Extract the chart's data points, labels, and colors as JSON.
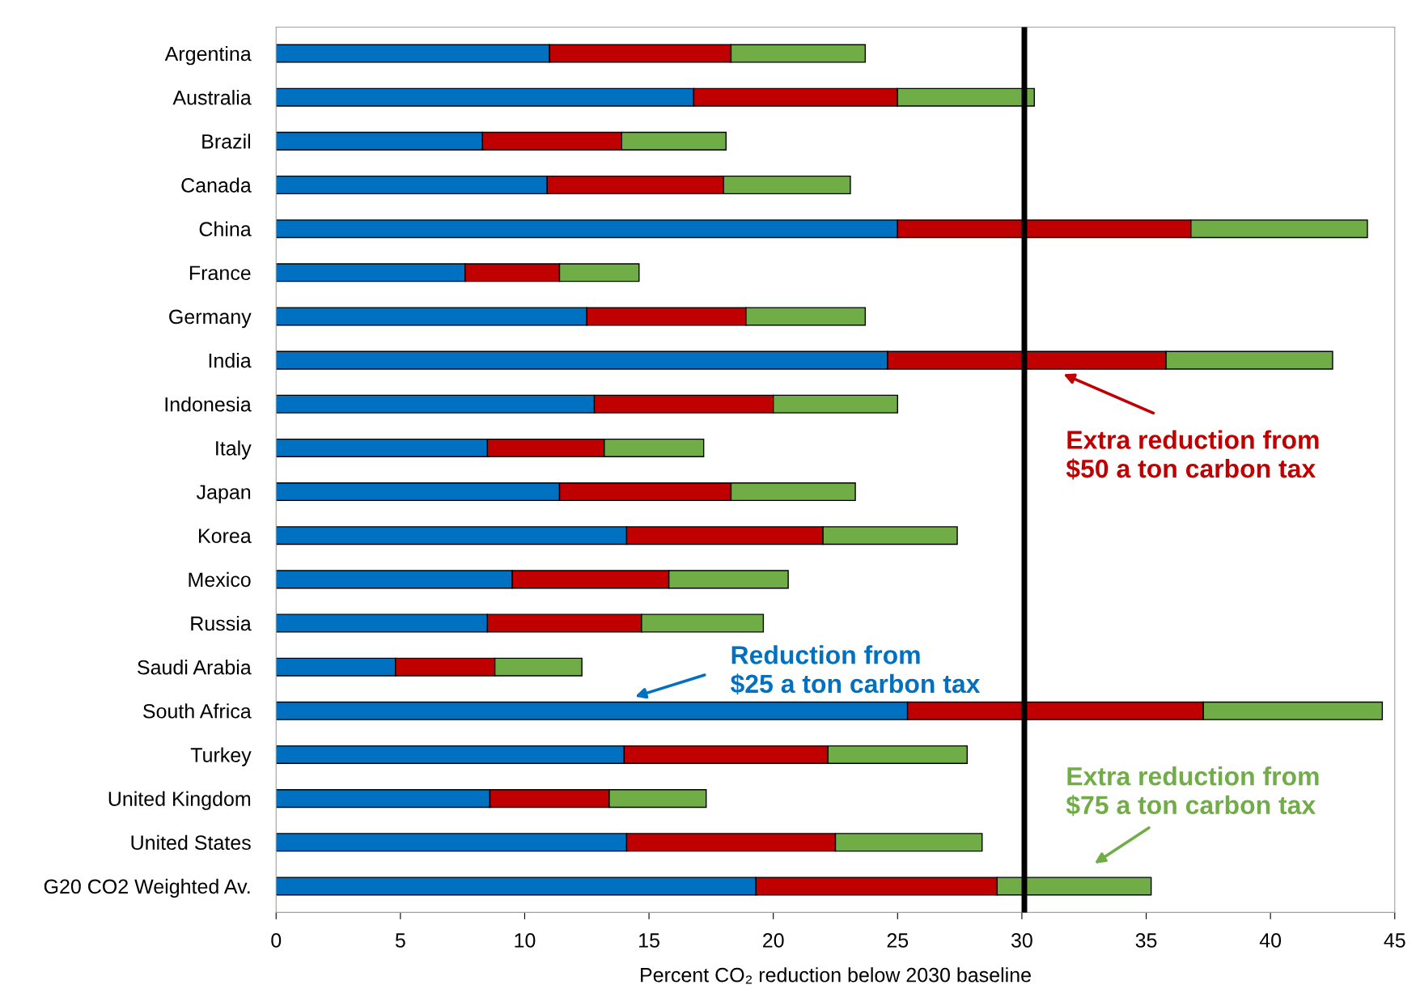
{
  "chart_data": {
    "type": "bar",
    "orientation": "horizontal",
    "stacked": true,
    "categories": [
      "Argentina",
      "Australia",
      "Brazil",
      "Canada",
      "China",
      "France",
      "Germany",
      "India",
      "Indonesia",
      "Italy",
      "Japan",
      "Korea",
      "Mexico",
      "Russia",
      "Saudi Arabia",
      "South Africa",
      "Turkey",
      "United Kingdom",
      "United States",
      "G20 CO2 Weighted Av."
    ],
    "series": [
      {
        "color": "#0070c0",
        "values": [
          11.0,
          16.8,
          8.3,
          10.9,
          25.0,
          7.6,
          12.5,
          24.6,
          12.8,
          8.5,
          11.4,
          14.1,
          9.5,
          8.5,
          4.8,
          25.4,
          14.0,
          8.6,
          14.1,
          19.3
        ]
      },
      {
        "color": "#c00000",
        "values": [
          7.3,
          8.2,
          5.6,
          7.1,
          11.8,
          3.8,
          6.4,
          11.2,
          7.2,
          4.7,
          6.9,
          7.9,
          6.3,
          6.2,
          4.0,
          11.9,
          8.2,
          4.8,
          8.4,
          9.7
        ]
      },
      {
        "color": "#70ad47",
        "values": [
          5.4,
          5.5,
          4.2,
          5.1,
          7.1,
          3.2,
          4.8,
          6.7,
          5.0,
          4.0,
          5.0,
          5.4,
          4.8,
          4.9,
          3.5,
          7.2,
          5.6,
          3.9,
          5.9,
          6.2
        ]
      }
    ],
    "xlim": [
      0,
      45
    ],
    "xticks": [
      0,
      5,
      10,
      15,
      20,
      25,
      30,
      35,
      40,
      45
    ],
    "xlabel": "Percent CO₂ reduction below 2030 baseline",
    "ref_lines": [
      {
        "axis": "x",
        "value": 30.1,
        "color": "#000000"
      }
    ],
    "annotations": [
      "Reduction from\n$25 a ton carbon tax",
      "Extra reduction from\n$50 a ton carbon tax",
      "Extra reduction from\n$75 a ton carbon tax"
    ],
    "grid": false
  }
}
